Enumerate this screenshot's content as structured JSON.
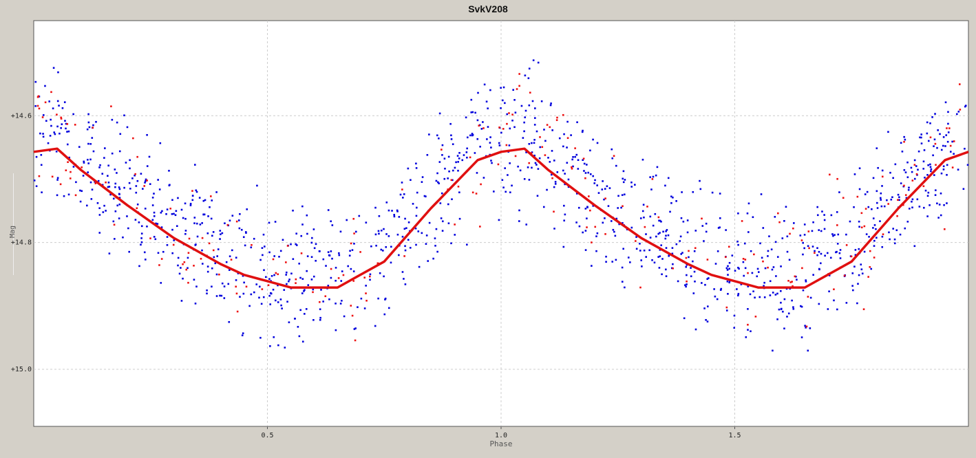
{
  "chart_data": {
    "type": "scatter",
    "title": "SvkV208",
    "xlabel": "Phase",
    "ylabel": "Mag",
    "xlim": [
      0.0,
      2.0
    ],
    "ylim": [
      15.09,
      14.45
    ],
    "y_inverted": true,
    "x_ticks": [
      "0.5",
      "1.0",
      "1.5"
    ],
    "x_tick_values": [
      0.5,
      1.0,
      1.5
    ],
    "y_ticks": [
      "+14.6",
      "+14.8",
      "+15.0"
    ],
    "y_tick_values": [
      14.6,
      14.8,
      15.0
    ],
    "grid": true,
    "colors": {
      "series_blue": "#0000dd",
      "series_red": "#ee1111",
      "fit": "#e01010",
      "grid": "#cccccc"
    },
    "fit_curve": {
      "x": [
        0.0,
        0.05,
        0.1,
        0.2,
        0.3,
        0.4,
        0.45,
        0.55,
        0.65,
        0.75,
        0.85,
        0.95,
        1.0,
        1.05,
        1.1,
        1.2,
        1.3,
        1.4,
        1.45,
        1.55,
        1.65,
        1.75,
        1.85,
        1.95,
        2.0
      ],
      "y": [
        14.657,
        14.652,
        14.685,
        14.741,
        14.793,
        14.834,
        14.851,
        14.871,
        14.871,
        14.83,
        14.746,
        14.67,
        14.657,
        14.652,
        14.685,
        14.741,
        14.793,
        14.834,
        14.851,
        14.871,
        14.871,
        14.83,
        14.746,
        14.67,
        14.657
      ]
    },
    "series": [
      {
        "color": "blue",
        "count": 1250,
        "scatter": 0.075
      },
      {
        "color": "red",
        "count": 230,
        "scatter": 0.075
      }
    ]
  }
}
